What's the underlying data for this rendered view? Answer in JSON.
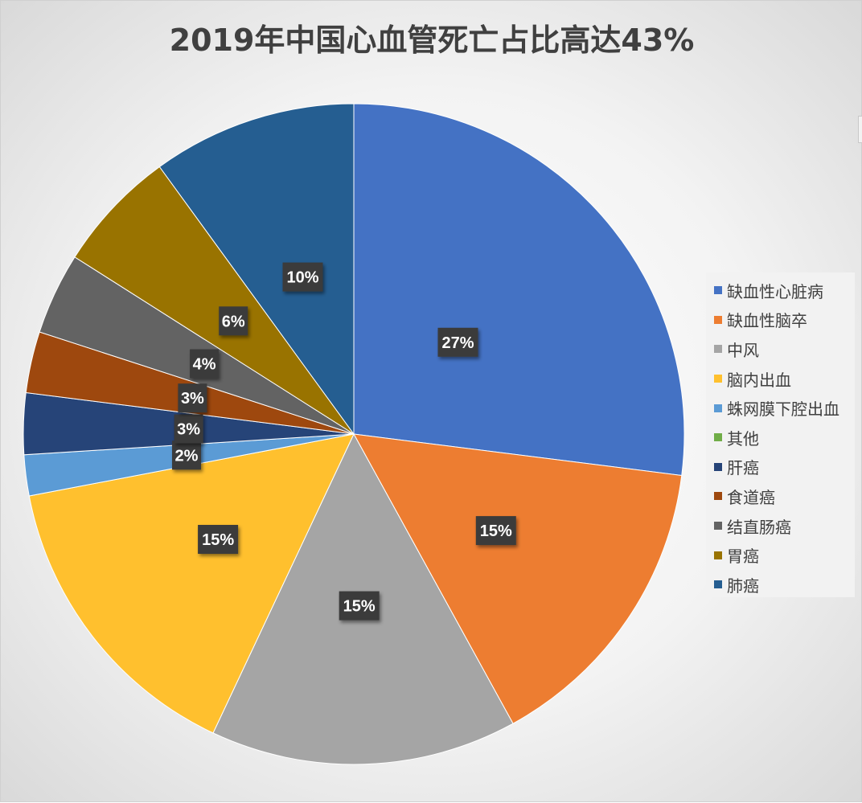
{
  "chart_data": {
    "type": "pie",
    "title": "2019年中国心血管死亡占比高达43%",
    "legend_position": "right",
    "slices": [
      {
        "name": "缺血性心脏病",
        "value": 27,
        "label": "27%",
        "color": "#4472C4"
      },
      {
        "name": "缺血性脑卒",
        "value": 15,
        "label": "15%",
        "color": "#ED7D31"
      },
      {
        "name": "中风",
        "value": 15,
        "label": "15%",
        "color": "#A5A5A5"
      },
      {
        "name": "脑内出血",
        "value": 15,
        "label": "15%",
        "color": "#FFC02E"
      },
      {
        "name": "蛛网膜下腔出血",
        "value": 2,
        "label": "2%",
        "color": "#5B9BD5"
      },
      {
        "name": "其他",
        "value": 0,
        "label": "",
        "color": "#70AD47"
      },
      {
        "name": "肝癌",
        "value": 3,
        "label": "3%",
        "color": "#264478"
      },
      {
        "name": "食道癌",
        "value": 3,
        "label": "3%",
        "color": "#9E480E"
      },
      {
        "name": "结直肠癌",
        "value": 4,
        "label": "4%",
        "color": "#636363"
      },
      {
        "name": "胃癌",
        "value": 6,
        "label": "6%",
        "color": "#997300"
      },
      {
        "name": "肺癌",
        "value": 10,
        "label": "10%",
        "color": "#255E91"
      }
    ]
  }
}
